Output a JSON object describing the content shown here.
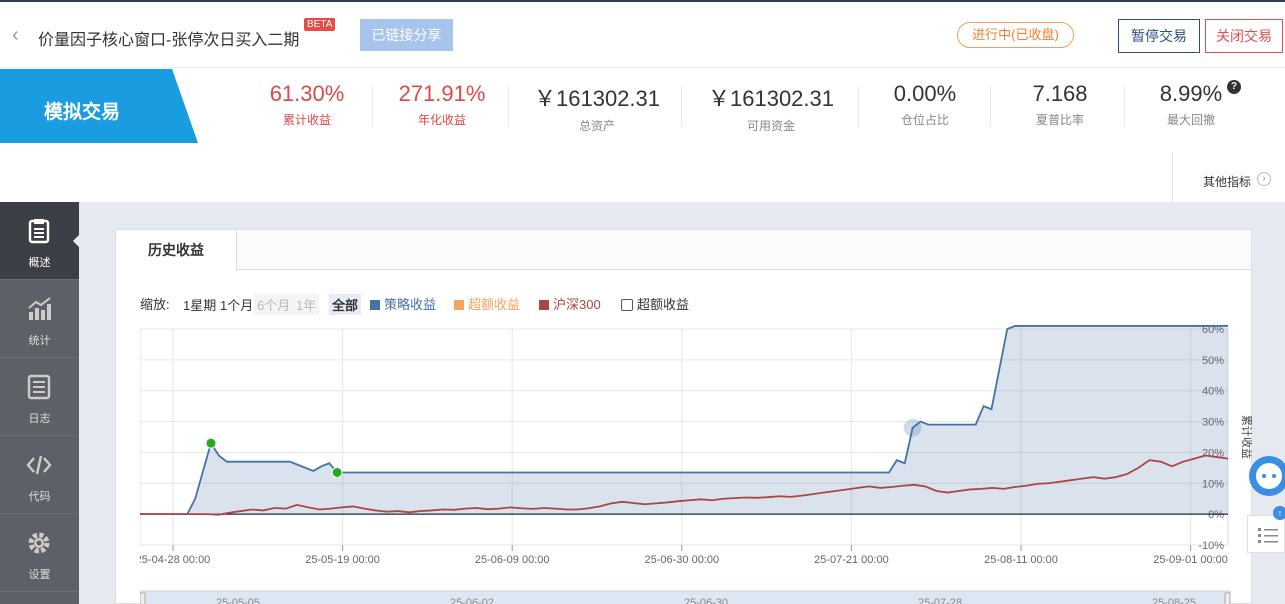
{
  "header": {
    "title": "价量因子核心窗口-张停次日买入二期",
    "beta": "BETA",
    "share_label": "已链接分享",
    "status": "进行中(已收盘)",
    "pause_label": "暂停交易",
    "close_label": "关闭交易"
  },
  "mode": "模拟交易",
  "stats": [
    {
      "value": "61.30%",
      "label": "累计收益"
    },
    {
      "value": "271.91%",
      "label": "年化收益"
    },
    {
      "value": "￥161302.31",
      "label": "总资产"
    },
    {
      "value": "￥161302.31",
      "label": "可用资金"
    },
    {
      "value": "0.00%",
      "label": "仓位占比"
    },
    {
      "value": "7.168",
      "label": "夏普比率"
    },
    {
      "value": "8.99%",
      "label": "最大回撤"
    }
  ],
  "more_metrics": "其他指标",
  "sidebar": [
    {
      "label": "概述",
      "icon": "clipboard-icon"
    },
    {
      "label": "统计",
      "icon": "bar-chart-icon"
    },
    {
      "label": "日志",
      "icon": "log-list-icon"
    },
    {
      "label": "代码",
      "icon": "code-icon"
    },
    {
      "label": "设置",
      "icon": "gear-icon"
    }
  ],
  "panel_tab": "历史收益",
  "zoom": {
    "label": "缩放:",
    "options": [
      "1星期",
      "1个月",
      "6个月",
      "1年",
      "全部"
    ],
    "legend": [
      {
        "name": "策略收益",
        "color": "#4572a7"
      },
      {
        "name": "超额收益",
        "color": "#f7a35c"
      },
      {
        "name": "沪深300",
        "color": "#aa4643"
      },
      {
        "name": "超额收益",
        "color": "#333333"
      }
    ]
  },
  "chart_data": {
    "type": "area",
    "ylabel": "累计收益",
    "ylim": [
      -10,
      60
    ],
    "y_ticks": [
      "60%",
      "50%",
      "40%",
      "30%",
      "20%",
      "10%",
      "0%",
      "-10%"
    ],
    "x_ticks": [
      "25-04-28 00:00",
      "25-05-19 00:00",
      "25-06-09 00:00",
      "25-06-30 00:00",
      "25-07-21 00:00",
      "25-08-11 00:00",
      "25-09-01 00:00"
    ],
    "navigator_ticks": [
      "25-05-05",
      "25-06-02",
      "25-06-30",
      "25-07-28",
      "25-08-25"
    ],
    "series": [
      {
        "name": "策略收益",
        "color": "#4572a7",
        "values": [
          0,
          0,
          0,
          0,
          0,
          0,
          0,
          5,
          14,
          23,
          19,
          17,
          17,
          17,
          17,
          17,
          17,
          17,
          17,
          17,
          16,
          15,
          14,
          15.5,
          16.5,
          13.5,
          13.5,
          13.5,
          13.5,
          13.5,
          13.5,
          13.5,
          13.5,
          13.5,
          13.5,
          13.5,
          13.5,
          13.5,
          13.5,
          13.5,
          13.5,
          13.5,
          13.5,
          13.5,
          13.5,
          13.5,
          13.5,
          13.5,
          13.5,
          13.5,
          13.5,
          13.5,
          13.5,
          13.5,
          13.5,
          13.5,
          13.5,
          13.5,
          13.5,
          13.5,
          13.5,
          13.5,
          13.5,
          13.5,
          13.5,
          13.5,
          13.5,
          13.5,
          13.5,
          13.5,
          13.5,
          13.5,
          13.5,
          13.5,
          13.5,
          13.5,
          13.5,
          13.5,
          13.5,
          13.5,
          13.5,
          13.5,
          13.5,
          13.5,
          13.5,
          13.5,
          13.5,
          13.5,
          13.5,
          13.5,
          13.5,
          13.5,
          13.5,
          13.5,
          13.5,
          13.5,
          17.5,
          16.5,
          28,
          30,
          29,
          29,
          29,
          29,
          29,
          29,
          29,
          35,
          34,
          47,
          60,
          61,
          61,
          61,
          61,
          61,
          61,
          61,
          61,
          61,
          61,
          61,
          61,
          61,
          61,
          61,
          61,
          61,
          61,
          61,
          61,
          61,
          61,
          61,
          61,
          61,
          61,
          61,
          61
        ]
      },
      {
        "name": "沪深300",
        "color": "#aa4643",
        "values": [
          0,
          0,
          0,
          0,
          0,
          0,
          0,
          -0.2,
          0.5,
          1,
          1.5,
          1.2,
          2,
          1.8,
          3,
          2.2,
          1.5,
          1.8,
          2.2,
          2.5,
          1.8,
          1.2,
          0.8,
          1,
          0.6,
          1,
          1.2,
          1.5,
          1.4,
          1.8,
          2,
          1.6,
          1.8,
          2.2,
          1.9,
          1.7,
          2,
          1.8,
          1.5,
          1.5,
          1.9,
          2.5,
          3.5,
          4,
          3.6,
          3.2,
          3.5,
          3.8,
          4.2,
          4.5,
          4.8,
          4.5,
          5,
          5.2,
          5.4,
          5.3,
          5.5,
          5.8,
          5.6,
          6,
          6.5,
          7,
          7.5,
          8,
          8.5,
          9,
          8.5,
          8.8,
          9.2,
          9.5,
          9,
          7.5,
          7,
          7.5,
          8,
          8.2,
          8.5,
          8.2,
          8.8,
          9.2,
          9.8,
          10,
          10.5,
          11,
          11.5,
          12,
          11.5,
          12,
          13,
          15,
          17.5,
          17,
          15.5,
          17,
          18,
          19,
          18.5,
          18
        ]
      }
    ],
    "markers": [
      {
        "series": "策略收益",
        "index": 9,
        "color": "#22aa22"
      },
      {
        "series": "策略收益",
        "index": 25,
        "color": "#22aa22"
      }
    ]
  }
}
